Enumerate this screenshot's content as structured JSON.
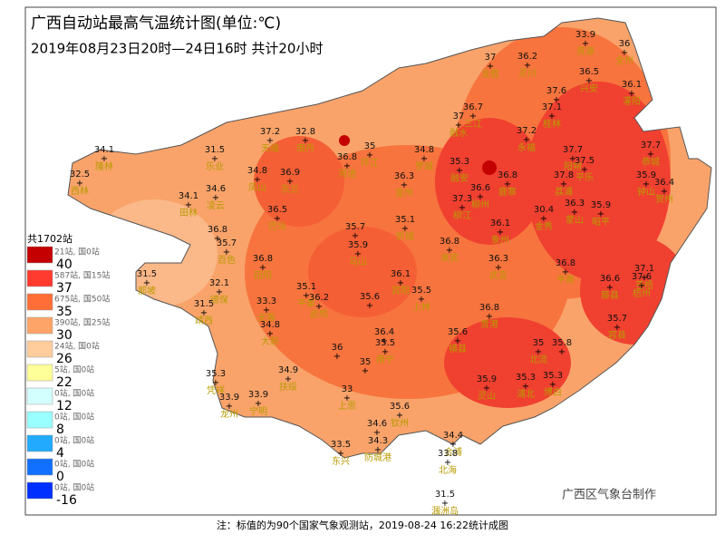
{
  "title": "广西自动站最高气温统计图(单位:℃)",
  "subtitle": "2019年08月23日20时—24日16时  共计20小时",
  "footer": "注：标值的为90个国家气象观测站，2019-08-24 16:22统计成图",
  "credit": "广西区气象台制作",
  "legend": {
    "total": "共1702站",
    "bins": [
      {
        "color": "#c40000",
        "count": "21站, 国0站",
        "threshold": 40
      },
      {
        "color": "#ff3a2e",
        "count": "587站, 国15站",
        "threshold": 37
      },
      {
        "color": "#ff6e36",
        "count": "675站, 国50站",
        "threshold": 35
      },
      {
        "color": "#ffa468",
        "count": "390站, 国25站",
        "threshold": 30
      },
      {
        "color": "#ffcc9c",
        "count": "24站, 国0站",
        "threshold": 26
      },
      {
        "color": "#ffff99",
        "count": "5站, 国0站",
        "threshold": 22
      },
      {
        "color": "#d4ffff",
        "count": "0站, 国0站",
        "threshold": 12
      },
      {
        "color": "#99ffff",
        "count": "0站, 国0站",
        "threshold": 8
      },
      {
        "color": "#22aaff",
        "count": "0站, 国0站",
        "threshold": 4
      },
      {
        "color": "#1170ff",
        "count": "0站, 国0站",
        "threshold": 0
      },
      {
        "color": "#0030ff",
        "count": "0站, 国0站",
        "threshold": -16
      }
    ]
  },
  "stations": [
    {
      "value": 34.1,
      "name": "隆林"
    },
    {
      "value": 32.5,
      "name": "西林"
    },
    {
      "value": 31.5,
      "name": "乐业"
    },
    {
      "value": 37.2,
      "name": "天峨"
    },
    {
      "value": 32.8,
      "name": "南丹"
    },
    {
      "value": 34.8,
      "name": "凤山"
    },
    {
      "value": 36.9,
      "name": "东兰"
    },
    {
      "value": 34.1,
      "name": "田林"
    },
    {
      "value": 34.6,
      "name": "凌云"
    },
    {
      "value": 36.5,
      "name": "巴马"
    },
    {
      "value": 35,
      "name": "环江"
    },
    {
      "value": 36.8,
      "name": "河池"
    },
    {
      "value": 34.8,
      "name": "罗城"
    },
    {
      "value": 36.3,
      "name": "宜州"
    },
    {
      "value": 35.3,
      "name": "融安"
    },
    {
      "value": 36.7,
      "name": "三江"
    },
    {
      "value": 37,
      "name": "融水"
    },
    {
      "value": 37,
      "name": "龙胜"
    },
    {
      "value": 36.2,
      "name": "灵川"
    },
    {
      "value": 33.9,
      "name": "资源"
    },
    {
      "value": 36,
      "name": "全州"
    },
    {
      "value": 36.5,
      "name": "兴安"
    },
    {
      "value": 36.1,
      "name": "灌阳"
    },
    {
      "value": 37.6
    },
    {
      "value": 37.1,
      "name": "桂林"
    },
    {
      "value": 37.2,
      "name": "永福"
    },
    {
      "value": 37.7,
      "name": "阳朔"
    },
    {
      "value": 37.7,
      "name": "恭城"
    },
    {
      "value": 37.5,
      "name": "平乐"
    },
    {
      "value": 37.8,
      "name": "荔浦"
    },
    {
      "value": 36.8,
      "name": "鹿寨"
    },
    {
      "value": 35.9,
      "name": "钟山"
    },
    {
      "value": 36.4,
      "name": "贺州"
    },
    {
      "value": 37.3,
      "name": "柳江"
    },
    {
      "value": 36.6,
      "name": "柳州"
    },
    {
      "value": 30.4,
      "name": "金秀"
    },
    {
      "value": 36.3,
      "name": "蒙山"
    },
    {
      "value": 35.9,
      "name": "昭平"
    },
    {
      "value": 36.8
    },
    {
      "value": 35.7
    },
    {
      "value": 35.1,
      "name": "忻城"
    },
    {
      "value": 36.1,
      "name": "象州"
    },
    {
      "value": 35.7,
      "name": "百色"
    },
    {
      "value": 35.9,
      "name": "马山"
    },
    {
      "value": 36.8,
      "name": "来宾"
    },
    {
      "value": 36.3,
      "name": "武宣"
    },
    {
      "value": 36.8,
      "name": "平南"
    },
    {
      "value": 37.1,
      "name": "苍梧"
    },
    {
      "value": 36.6,
      "name": "藤县"
    },
    {
      "value": 37.6,
      "name": "梧州"
    },
    {
      "value": 36.8,
      "name": "田阳"
    },
    {
      "value": 31.5,
      "name": "那坡"
    },
    {
      "value": 32.1,
      "name": "德保"
    },
    {
      "value": 31.5,
      "name": "靖西"
    },
    {
      "value": 35.1,
      "name": "平果"
    },
    {
      "value": 36.2,
      "name": "武鸣"
    },
    {
      "value": 36.1,
      "name": "宾阳"
    },
    {
      "value": 35.5,
      "name": "上林"
    },
    {
      "value": 35.6
    },
    {
      "value": 33.3,
      "name": "天等"
    },
    {
      "value": 34.8,
      "name": "大新"
    },
    {
      "value": 36.8,
      "name": "贵港"
    },
    {
      "value": 35.7,
      "name": "容县"
    },
    {
      "value": 36.4
    },
    {
      "value": 35.5,
      "name": "南宁"
    },
    {
      "value": 35.6,
      "name": "横县"
    },
    {
      "value": 36
    },
    {
      "value": 35
    },
    {
      "value": 35,
      "name": "北流"
    },
    {
      "value": 35.8
    },
    {
      "value": 35.3,
      "name": "凭祥"
    },
    {
      "value": 34.9,
      "name": "扶绥"
    },
    {
      "value": 35.9,
      "name": "灵山"
    },
    {
      "value": 35.3,
      "name": "浦北"
    },
    {
      "value": 35.3,
      "name": "博白"
    },
    {
      "value": 33.9,
      "name": "龙州"
    },
    {
      "value": 33.9,
      "name": "宁明"
    },
    {
      "value": 33,
      "name": "上思"
    },
    {
      "value": 35.6,
      "name": "钦州"
    },
    {
      "value": 34.6
    },
    {
      "value": 34.3,
      "name": "防城港"
    },
    {
      "value": 34.4,
      "name": "合浦"
    },
    {
      "value": 33.5,
      "name": "东兴"
    },
    {
      "value": 33.8,
      "name": "北海"
    },
    {
      "value": 31.5,
      "name": "涠洲岛"
    }
  ]
}
